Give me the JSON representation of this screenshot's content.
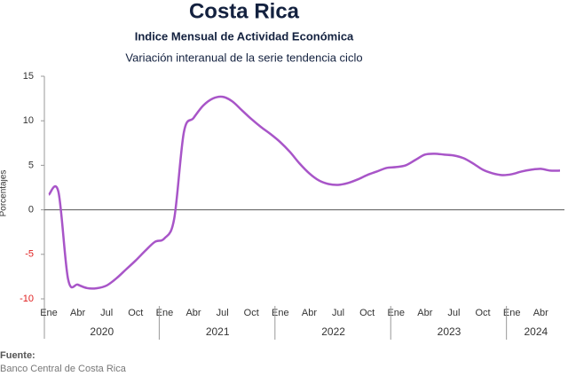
{
  "chart_data": {
    "type": "line",
    "title": "Costa Rica",
    "subtitle": "Indice Mensual de  Actividad Económica",
    "subtitle2": "Variación interanual de la serie tendencia ciclo",
    "y_label": "Porcentajes",
    "categories": [
      "Ene",
      null,
      null,
      "Abr",
      null,
      null,
      "Jul",
      null,
      null,
      "Oct",
      null,
      null,
      "Ene",
      null,
      null,
      "Abr",
      null,
      null,
      "Jul",
      null,
      null,
      "Oct",
      null,
      null,
      "Ene",
      null,
      null,
      "Abr",
      null,
      null,
      "Jul",
      null,
      null,
      "Oct",
      null,
      null,
      "Ene",
      null,
      null,
      "Abr",
      null,
      null,
      "Jul",
      null,
      null,
      "Oct",
      null,
      null,
      "Ene",
      null,
      null,
      "Abr",
      null,
      null
    ],
    "years": [
      "2020",
      "2021",
      "2022",
      "2023",
      "2024"
    ],
    "series": [
      {
        "name": "Variación interanual",
        "color": "#a855c8",
        "values": [
          1.7,
          2.0,
          -7.8,
          -8.4,
          -8.8,
          -8.8,
          -8.5,
          -7.7,
          -6.7,
          -5.7,
          -4.6,
          -3.6,
          -3.2,
          -1.0,
          8.7,
          10.3,
          11.7,
          12.5,
          12.7,
          12.2,
          11.2,
          10.2,
          9.3,
          8.5,
          7.6,
          6.5,
          5.2,
          4.1,
          3.3,
          2.9,
          2.8,
          3.0,
          3.4,
          3.9,
          4.3,
          4.7,
          4.8,
          5.0,
          5.6,
          6.2,
          6.3,
          6.2,
          6.1,
          5.8,
          5.2,
          4.5,
          4.1,
          3.9,
          4.0,
          4.3,
          4.5,
          4.6,
          4.4,
          4.4
        ]
      }
    ],
    "ylim": [
      -10,
      15
    ],
    "yticks": [
      -10,
      -5,
      0,
      5,
      10,
      15
    ],
    "negative_tick_color": "#e02020",
    "source_label": "Fuente:",
    "source": "Banco Central de Costa Rica"
  }
}
